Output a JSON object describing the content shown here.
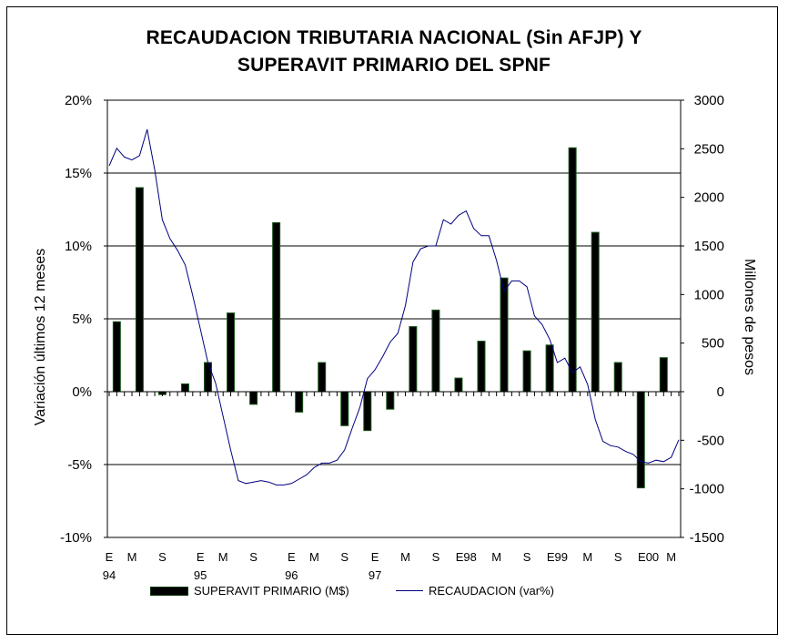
{
  "chart_data": {
    "type": "bar+line",
    "title_line1": "RECAUDACION TRIBUTARIA NACIONAL (Sin AFJP) Y",
    "title_line2": "SUPERAVIT PRIMARIO DEL SPNF",
    "ylabel": "Variación últimos 12 meses",
    "y2label": "Millones de pesos",
    "left_axis": {
      "ylim": [
        -0.1,
        0.2
      ],
      "ticks": [
        {
          "v": 0.2,
          "label": "20%"
        },
        {
          "v": 0.15,
          "label": "15%"
        },
        {
          "v": 0.1,
          "label": "10%"
        },
        {
          "v": 0.05,
          "label": "5%"
        },
        {
          "v": 0.0,
          "label": "0%"
        },
        {
          "v": -0.05,
          "label": "-5%"
        },
        {
          "v": -0.1,
          "label": "-10%"
        }
      ]
    },
    "right_axis": {
      "ylim": [
        -1500,
        3000
      ],
      "ticks": [
        {
          "v": 3000,
          "label": "3000"
        },
        {
          "v": 2500,
          "label": "2500"
        },
        {
          "v": 2000,
          "label": "2000"
        },
        {
          "v": 1500,
          "label": "1500"
        },
        {
          "v": 1000,
          "label": "1000"
        },
        {
          "v": 500,
          "label": "500"
        },
        {
          "v": 0,
          "label": "0"
        },
        {
          "v": -500,
          "label": "-500"
        },
        {
          "v": -1000,
          "label": "-1000"
        },
        {
          "v": -1500,
          "label": "-1500"
        }
      ]
    },
    "x_range": [
      0,
      75
    ],
    "x_labels": [
      {
        "m": 0,
        "label": "E"
      },
      {
        "m": 3,
        "label": "M"
      },
      {
        "m": 7,
        "label": "S"
      },
      {
        "m": 12,
        "label": "E"
      },
      {
        "m": 15,
        "label": "M"
      },
      {
        "m": 19,
        "label": "S"
      },
      {
        "m": 24,
        "label": "E"
      },
      {
        "m": 27,
        "label": "M"
      },
      {
        "m": 31,
        "label": "S"
      },
      {
        "m": 35,
        "label": "E"
      },
      {
        "m": 39,
        "label": "M"
      },
      {
        "m": 43,
        "label": "S"
      },
      {
        "m": 47,
        "label": "E98"
      },
      {
        "m": 51,
        "label": "M"
      },
      {
        "m": 55,
        "label": "S"
      },
      {
        "m": 59,
        "label": "E99"
      },
      {
        "m": 63,
        "label": "M"
      },
      {
        "m": 67,
        "label": "S"
      },
      {
        "m": 71,
        "label": "E00"
      },
      {
        "m": 74,
        "label": "M"
      }
    ],
    "x_sublabels": [
      {
        "m": 0,
        "label": "94"
      },
      {
        "m": 12,
        "label": "95"
      },
      {
        "m": 24,
        "label": "96"
      },
      {
        "m": 35,
        "label": "97"
      }
    ],
    "grid": "horizontal",
    "series": [
      {
        "name": "SUPERAVIT PRIMARIO (M$)",
        "type": "bar",
        "axis": "right",
        "color": "#000000",
        "edge_color": "#1a5a1a",
        "points": [
          {
            "m": 1,
            "v": 720
          },
          {
            "m": 4,
            "v": 2100
          },
          {
            "m": 7,
            "v": -30
          },
          {
            "m": 10,
            "v": 80
          },
          {
            "m": 13,
            "v": 300
          },
          {
            "m": 16,
            "v": 810
          },
          {
            "m": 19,
            "v": -130
          },
          {
            "m": 22,
            "v": 1740
          },
          {
            "m": 25,
            "v": -210
          },
          {
            "m": 28,
            "v": 300
          },
          {
            "m": 31,
            "v": -350
          },
          {
            "m": 34,
            "v": -400
          },
          {
            "m": 37,
            "v": -180
          },
          {
            "m": 40,
            "v": 670
          },
          {
            "m": 43,
            "v": 840
          },
          {
            "m": 46,
            "v": 140
          },
          {
            "m": 49,
            "v": 520
          },
          {
            "m": 52,
            "v": 1170
          },
          {
            "m": 55,
            "v": 420
          },
          {
            "m": 58,
            "v": 480
          },
          {
            "m": 61,
            "v": 2510
          },
          {
            "m": 64,
            "v": 1640
          },
          {
            "m": 67,
            "v": 300
          },
          {
            "m": 70,
            "v": -990
          },
          {
            "m": 73,
            "v": 350
          }
        ]
      },
      {
        "name": "RECAUDACION (var%)",
        "type": "line",
        "axis": "left",
        "color": "#000080",
        "points": [
          [
            0,
            0.155
          ],
          [
            1,
            0.167
          ],
          [
            2,
            0.161
          ],
          [
            3,
            0.159
          ],
          [
            4,
            0.162
          ],
          [
            5,
            0.18
          ],
          [
            6,
            0.152
          ],
          [
            7,
            0.118
          ],
          [
            8,
            0.105
          ],
          [
            9,
            0.097
          ],
          [
            10,
            0.087
          ],
          [
            11,
            0.066
          ],
          [
            12,
            0.043
          ],
          [
            13,
            0.02
          ],
          [
            14,
            0.006
          ],
          [
            15,
            -0.017
          ],
          [
            16,
            -0.04
          ],
          [
            17,
            -0.061
          ],
          [
            18,
            -0.063
          ],
          [
            19,
            -0.062
          ],
          [
            20,
            -0.061
          ],
          [
            21,
            -0.062
          ],
          [
            22,
            -0.064
          ],
          [
            23,
            -0.064
          ],
          [
            24,
            -0.063
          ],
          [
            25,
            -0.06
          ],
          [
            26,
            -0.057
          ],
          [
            27,
            -0.052
          ],
          [
            28,
            -0.049
          ],
          [
            29,
            -0.049
          ],
          [
            30,
            -0.047
          ],
          [
            31,
            -0.04
          ],
          [
            32,
            -0.025
          ],
          [
            33,
            -0.011
          ],
          [
            34,
            0.009
          ],
          [
            35,
            0.015
          ],
          [
            36,
            0.024
          ],
          [
            37,
            0.034
          ],
          [
            38,
            0.04
          ],
          [
            39,
            0.059
          ],
          [
            40,
            0.089
          ],
          [
            41,
            0.098
          ],
          [
            42,
            0.1
          ],
          [
            43,
            0.1
          ],
          [
            44,
            0.118
          ],
          [
            45,
            0.115
          ],
          [
            46,
            0.121
          ],
          [
            47,
            0.124
          ],
          [
            48,
            0.112
          ],
          [
            49,
            0.107
          ],
          [
            50,
            0.107
          ],
          [
            51,
            0.09
          ],
          [
            52,
            0.069
          ],
          [
            53,
            0.076
          ],
          [
            54,
            0.076
          ],
          [
            55,
            0.072
          ],
          [
            56,
            0.052
          ],
          [
            57,
            0.046
          ],
          [
            58,
            0.036
          ],
          [
            59,
            0.02
          ],
          [
            60,
            0.023
          ],
          [
            61,
            0.013
          ],
          [
            62,
            0.017
          ],
          [
            63,
            0.005
          ],
          [
            64,
            -0.019
          ],
          [
            65,
            -0.034
          ],
          [
            66,
            -0.037
          ],
          [
            67,
            -0.038
          ],
          [
            68,
            -0.041
          ],
          [
            69,
            -0.043
          ],
          [
            70,
            -0.048
          ],
          [
            71,
            -0.049
          ],
          [
            72,
            -0.047
          ],
          [
            73,
            -0.048
          ],
          [
            74,
            -0.045
          ],
          [
            75,
            -0.033
          ]
        ]
      }
    ],
    "legend": {
      "bar_label": "SUPERAVIT PRIMARIO (M$)",
      "line_label": "RECAUDACION (var%)",
      "placement": "bottom"
    }
  }
}
